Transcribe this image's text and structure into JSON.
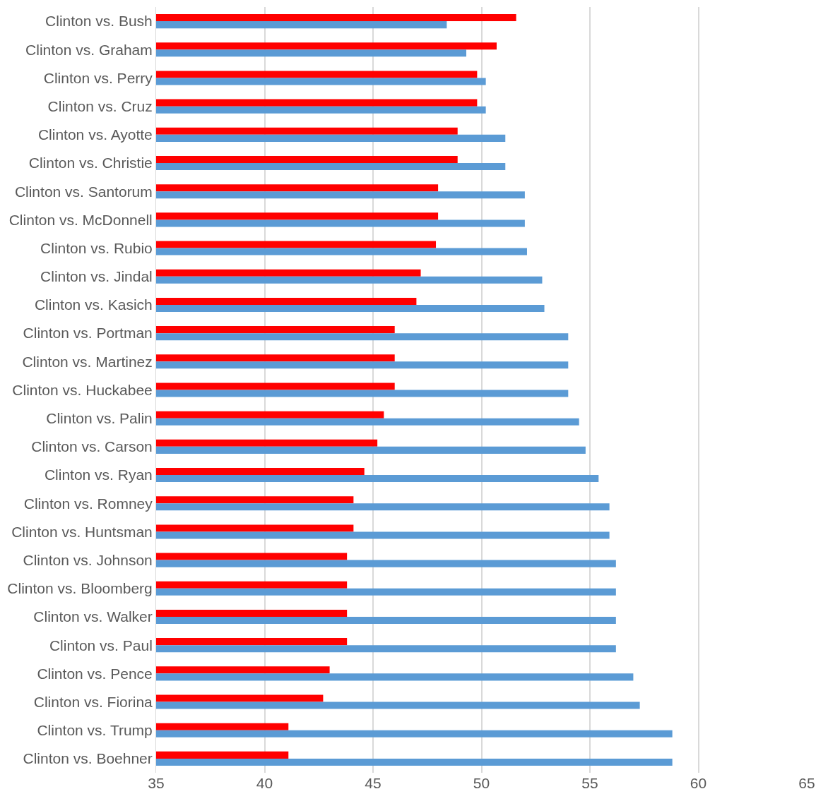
{
  "chart_data": {
    "type": "bar",
    "orientation": "horizontal",
    "categories": [
      "Clinton vs. Bush",
      "Clinton vs. Graham",
      "Clinton vs. Perry",
      "Clinton vs. Cruz",
      "Clinton vs. Ayotte",
      "Clinton vs. Christie",
      "Clinton vs. Santorum",
      "Clinton vs. McDonnell",
      "Clinton vs. Rubio",
      "Clinton vs. Jindal",
      "Clinton vs. Kasich",
      "Clinton vs. Portman",
      "Clinton vs. Martinez",
      "Clinton vs. Huckabee",
      "Clinton vs. Palin",
      "Clinton vs. Carson",
      "Clinton vs. Ryan",
      "Clinton vs. Romney",
      "Clinton vs. Huntsman",
      "Clinton vs. Johnson",
      "Clinton vs. Bloomberg",
      "Clinton vs. Walker",
      "Clinton vs. Paul",
      "Clinton vs. Pence",
      "Clinton vs. Fiorina",
      "Clinton vs. Trump",
      "Clinton vs. Boehner"
    ],
    "series": [
      {
        "color": "#ff0000",
        "values": [
          51.6,
          50.7,
          49.8,
          49.8,
          48.9,
          48.9,
          48.0,
          48.0,
          47.9,
          47.2,
          47.0,
          46.0,
          46.0,
          46.0,
          45.5,
          45.2,
          44.6,
          44.1,
          44.1,
          43.8,
          43.8,
          43.8,
          43.8,
          43.0,
          42.7,
          41.1,
          41.1
        ]
      },
      {
        "color": "#5b9bd5",
        "values": [
          48.4,
          49.3,
          50.2,
          50.2,
          51.1,
          51.1,
          52.0,
          52.0,
          52.1,
          52.8,
          52.9,
          54.0,
          54.0,
          54.0,
          54.5,
          54.8,
          55.4,
          55.9,
          55.9,
          56.2,
          56.2,
          56.2,
          56.2,
          57.0,
          57.3,
          58.8,
          58.8
        ]
      }
    ],
    "xlim": [
      35,
      65
    ],
    "xticks": [
      35,
      40,
      45,
      50,
      55,
      60,
      65
    ],
    "grid": "x"
  }
}
